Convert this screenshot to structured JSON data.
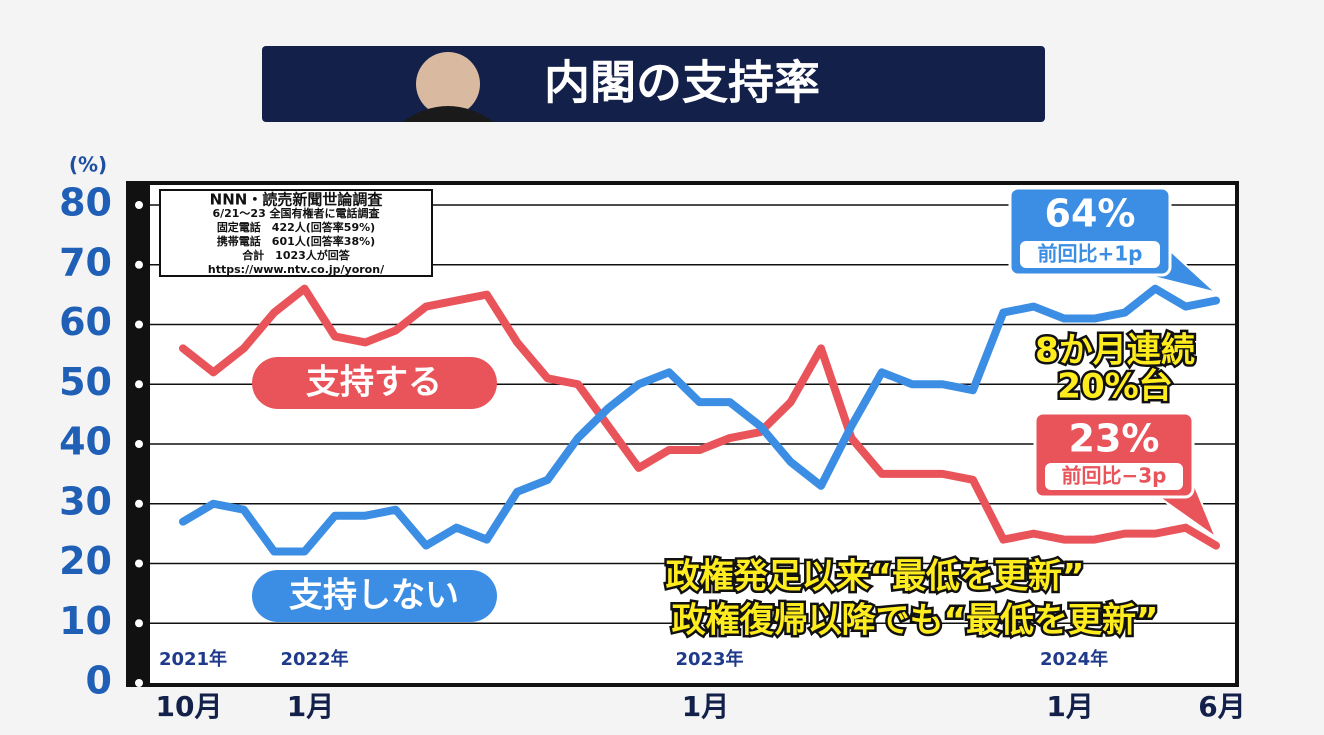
{
  "chart_data": {
    "type": "line",
    "title": "内閣の支持率",
    "y_unit": "(%)",
    "source": [
      "NNN・読売新聞世論調査",
      "6/21〜23 全国有権者に電話調査",
      "固定電話　422人(回答率59%)",
      "携帯電話　601人(回答率38%)",
      "合計　1023人が回答",
      "https://www.ntv.co.jp/yoron/"
    ],
    "categories": [
      "10月",
      null,
      null,
      null,
      "1月",
      null,
      null,
      null,
      null,
      null,
      null,
      null,
      null,
      null,
      null,
      null,
      null,
      "1月",
      null,
      null,
      null,
      null,
      null,
      null,
      null,
      null,
      null,
      null,
      null,
      "1月",
      null,
      null,
      null,
      null,
      "6月"
    ],
    "year_labels": [
      "2021年",
      "2022年",
      "2023年",
      "2024年"
    ],
    "series": [
      {
        "name": "支持する",
        "color": "#e9545a",
        "end_label": "23%",
        "change_label": "前回比−3p",
        "values": [
          56,
          52,
          56,
          62,
          66,
          58,
          57,
          59,
          63,
          64,
          65,
          57,
          51,
          50,
          43,
          36,
          39,
          39,
          41,
          42,
          47,
          56,
          41,
          35,
          35,
          35,
          34,
          24,
          25,
          24,
          24,
          25,
          25,
          26,
          23
        ]
      },
      {
        "name": "支持しない",
        "color": "#3b8ee3",
        "end_label": "64%",
        "change_label": "前回比+1p",
        "values": [
          27,
          30,
          29,
          22,
          22,
          28,
          28,
          29,
          23,
          26,
          24,
          32,
          34,
          41,
          46,
          50,
          52,
          47,
          47,
          43,
          37,
          33,
          43,
          52,
          50,
          50,
          49,
          62,
          63,
          61,
          61,
          62,
          66,
          63,
          64
        ]
      }
    ],
    "annotations": [
      "8か月連続",
      "20%台",
      "政権発足以来“最低を更新”",
      "政権復帰以降でも“最低を更新”"
    ],
    "ylim": [
      0,
      80
    ],
    "yticks": [
      0,
      10,
      20,
      30,
      40,
      50,
      60,
      70,
      80
    ],
    "grid": true
  }
}
